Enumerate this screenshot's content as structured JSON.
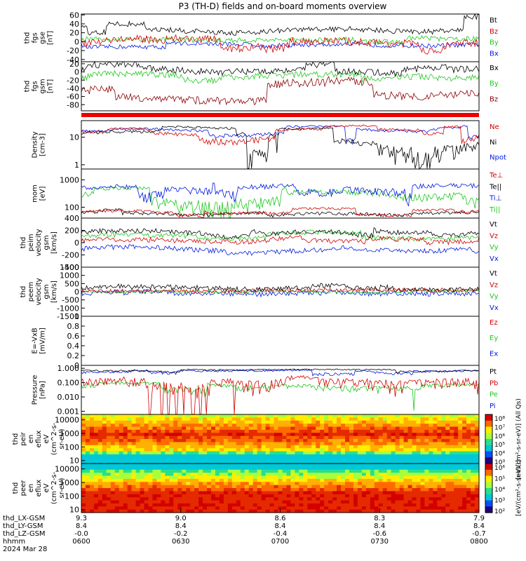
{
  "title": "P3 (TH-D) fields and on-board moments overview",
  "chart_data": [
    {
      "id": "fgs_gse",
      "type": "line",
      "ylabel": [
        "thd",
        "fgs",
        "gse",
        "[nT]"
      ],
      "yticks": [
        60,
        40,
        20,
        0,
        -20,
        -40
      ],
      "ylim": [
        -45,
        62
      ],
      "legend": [
        {
          "name": "Bt",
          "color": "#000000"
        },
        {
          "name": "Bz",
          "color": "#d40000"
        },
        {
          "name": "By",
          "color": "#1ec81e"
        },
        {
          "name": "Bx",
          "color": "#0018e0"
        }
      ]
    },
    {
      "id": "fgs_gsm",
      "type": "line",
      "ylabel": [
        "thd",
        "fgs",
        "gsm",
        "[nT]"
      ],
      "yticks": [
        20,
        0,
        -20,
        -40,
        -60,
        -80
      ],
      "ylim": [
        -95,
        25
      ],
      "legend": [
        {
          "name": "Bx",
          "color": "#000000"
        },
        {
          "name": "By",
          "color": "#1ec81e"
        },
        {
          "name": "Bz",
          "color": "#8b0000"
        }
      ]
    },
    {
      "id": "density",
      "type": "line",
      "ylabel": [
        "Density",
        "[cm-3]"
      ],
      "yticks": [
        10,
        1
      ],
      "ylog": true,
      "ylim": [
        0.7,
        40
      ],
      "legend": [
        {
          "name": "Ne",
          "color": "#d40000"
        },
        {
          "name": "Ni",
          "color": "#000000"
        },
        {
          "name": "Npot",
          "color": "#0018e0"
        }
      ]
    },
    {
      "id": "temp",
      "type": "line",
      "ylabel": [
        "mom",
        "[eV]"
      ],
      "yticks": [
        1000,
        100
      ],
      "ylog": true,
      "ylim": [
        40,
        2500
      ],
      "legend": [
        {
          "name": "Te⊥",
          "color": "#d40000"
        },
        {
          "name": "Te||",
          "color": "#000000"
        },
        {
          "name": "Ti⊥",
          "color": "#0018e0"
        },
        {
          "name": "Ti||",
          "color": "#1ec81e"
        }
      ]
    },
    {
      "id": "peim_vel",
      "type": "line",
      "ylabel": [
        "thd",
        "peim",
        "velocity",
        "gsm",
        "[km/s]"
      ],
      "yticks": [
        400,
        200,
        0,
        -200,
        -400
      ],
      "ylim": [
        -400,
        400
      ],
      "legend": [
        {
          "name": "Vt",
          "color": "#000000"
        },
        {
          "name": "Vz",
          "color": "#d40000"
        },
        {
          "name": "Vy",
          "color": "#1ec81e"
        },
        {
          "name": "Vx",
          "color": "#0018e0"
        }
      ]
    },
    {
      "id": "peem_vel",
      "type": "line",
      "ylabel": [
        "thd",
        "peem",
        "velocity",
        "gsm",
        "[km/s]"
      ],
      "yticks": [
        1500,
        1000,
        500,
        0,
        -500,
        -1000,
        -1500
      ],
      "ylim": [
        -1500,
        1500
      ],
      "legend": [
        {
          "name": "Vt",
          "color": "#000000"
        },
        {
          "name": "Vz",
          "color": "#d40000"
        },
        {
          "name": "Vy",
          "color": "#1ec81e"
        },
        {
          "name": "Vx",
          "color": "#0018e0"
        }
      ]
    },
    {
      "id": "efield",
      "type": "line",
      "ylabel": [
        "E=-VxB",
        "[mV/m]"
      ],
      "yticks": [
        1.0,
        0.8,
        0.6,
        0.4,
        0.2,
        0.0
      ],
      "ylim": [
        0,
        1
      ],
      "legend": [
        {
          "name": "Ez",
          "color": "#d40000"
        },
        {
          "name": "Ey",
          "color": "#1ec81e"
        },
        {
          "name": "Ex",
          "color": "#0018e0"
        }
      ]
    },
    {
      "id": "pressure",
      "type": "line",
      "ylabel": [
        "Pressure",
        "[nPa]"
      ],
      "yticks": [
        1.0,
        0.1,
        0.01,
        0.001
      ],
      "ytick_labels": [
        "1.000",
        "0.100",
        "0.010",
        "0.001"
      ],
      "ylog": true,
      "ylim": [
        0.0006,
        1.6
      ],
      "legend": [
        {
          "name": "Pt",
          "color": "#000000"
        },
        {
          "name": "Pb",
          "color": "#d40000"
        },
        {
          "name": "Pe",
          "color": "#1ec81e"
        },
        {
          "name": "Pi",
          "color": "#0018e0"
        }
      ]
    },
    {
      "id": "peir_eflux",
      "type": "heatmap",
      "ylabel": [
        "thd",
        "peir",
        "en",
        "eflux",
        "eV",
        "(cm^2-s-",
        "sr-eV)"
      ],
      "yticks": [
        10000,
        1000,
        100,
        10
      ],
      "ylog": true,
      "ylim": [
        6,
        25000
      ]
    },
    {
      "id": "peer_eflux",
      "type": "heatmap",
      "ylabel": [
        "thd",
        "peer",
        "en",
        "eflux",
        "eV",
        "(cm^2-s-",
        "sr-eV)"
      ],
      "yticks": [
        10000,
        1000,
        100,
        10
      ],
      "ylog": true,
      "ylim": [
        6,
        25000
      ]
    }
  ],
  "colorbars": [
    {
      "ticks": [
        "10⁸",
        "10⁷",
        "10⁶",
        "10⁵",
        "10⁴",
        "10³"
      ],
      "label": "[eV/(cm²-s-sr-eV)] (All Qs)"
    },
    {
      "ticks": [
        "10⁶",
        "10⁵",
        "10⁴",
        "10³",
        "10²"
      ],
      "label": "[eV/(cm²-s-sr-eV)]"
    }
  ],
  "x_axis": {
    "row_labels": [
      "thd_LX-GSM",
      "thd_LY-GSM",
      "thd_LZ-GSM",
      "hhmm",
      "2024 Mar 28"
    ],
    "ticks": [
      {
        "lx": "9.3",
        "ly": "8.4",
        "lz": "-0.0",
        "hhmm": "0600"
      },
      {
        "lx": "9.0",
        "ly": "8.4",
        "lz": "-0.2",
        "hhmm": "0630"
      },
      {
        "lx": "8.6",
        "ly": "8.4",
        "lz": "-0.4",
        "hhmm": "0700"
      },
      {
        "lx": "8.3",
        "ly": "8.4",
        "lz": "-0.6",
        "hhmm": "0730"
      },
      {
        "lx": "7.9",
        "ly": "8.4",
        "lz": "-0.7",
        "hhmm": "0800"
      }
    ]
  }
}
